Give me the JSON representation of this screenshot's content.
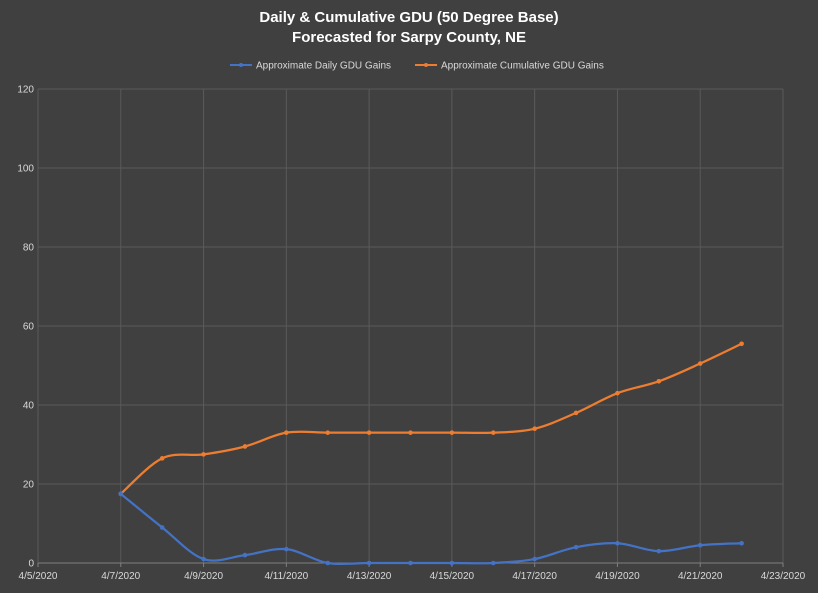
{
  "chart_data": {
    "type": "line",
    "title_lines": [
      "Daily & Cumulative GDU (50 Degree Base)",
      "Forecasted for Sarpy County, NE"
    ],
    "xlabel": "",
    "ylabel": "",
    "ylim": [
      0,
      120
    ],
    "yticks": [
      "0",
      "20",
      "40",
      "60",
      "80",
      "100",
      "120"
    ],
    "xlim": [
      "4/5/2020",
      "4/23/2020"
    ],
    "xticks": [
      "4/5/2020",
      "4/7/2020",
      "4/9/2020",
      "4/11/2020",
      "4/13/2020",
      "4/15/2020",
      "4/17/2020",
      "4/19/2020",
      "4/21/2020",
      "4/23/2020"
    ],
    "grid": true,
    "legend_position": "top",
    "x": [
      "4/7/2020",
      "4/8/2020",
      "4/9/2020",
      "4/10/2020",
      "4/11/2020",
      "4/12/2020",
      "4/13/2020",
      "4/14/2020",
      "4/15/2020",
      "4/16/2020",
      "4/17/2020",
      "4/18/2020",
      "4/19/2020",
      "4/20/2020",
      "4/21/2020",
      "4/22/2020"
    ],
    "series": [
      {
        "name": "Approximate Daily GDU Gains",
        "color": "#4472c4",
        "values": [
          17.5,
          9,
          1,
          2,
          3.5,
          0,
          0,
          0,
          0,
          0,
          1,
          4,
          5,
          3,
          4.5,
          5
        ]
      },
      {
        "name": "Approximate Cumulative GDU Gains",
        "color": "#ed7d31",
        "values": [
          17.5,
          26.5,
          27.5,
          29.5,
          33,
          33,
          33,
          33,
          33,
          33,
          34,
          38,
          43,
          46,
          50.5,
          55.5
        ]
      }
    ]
  }
}
